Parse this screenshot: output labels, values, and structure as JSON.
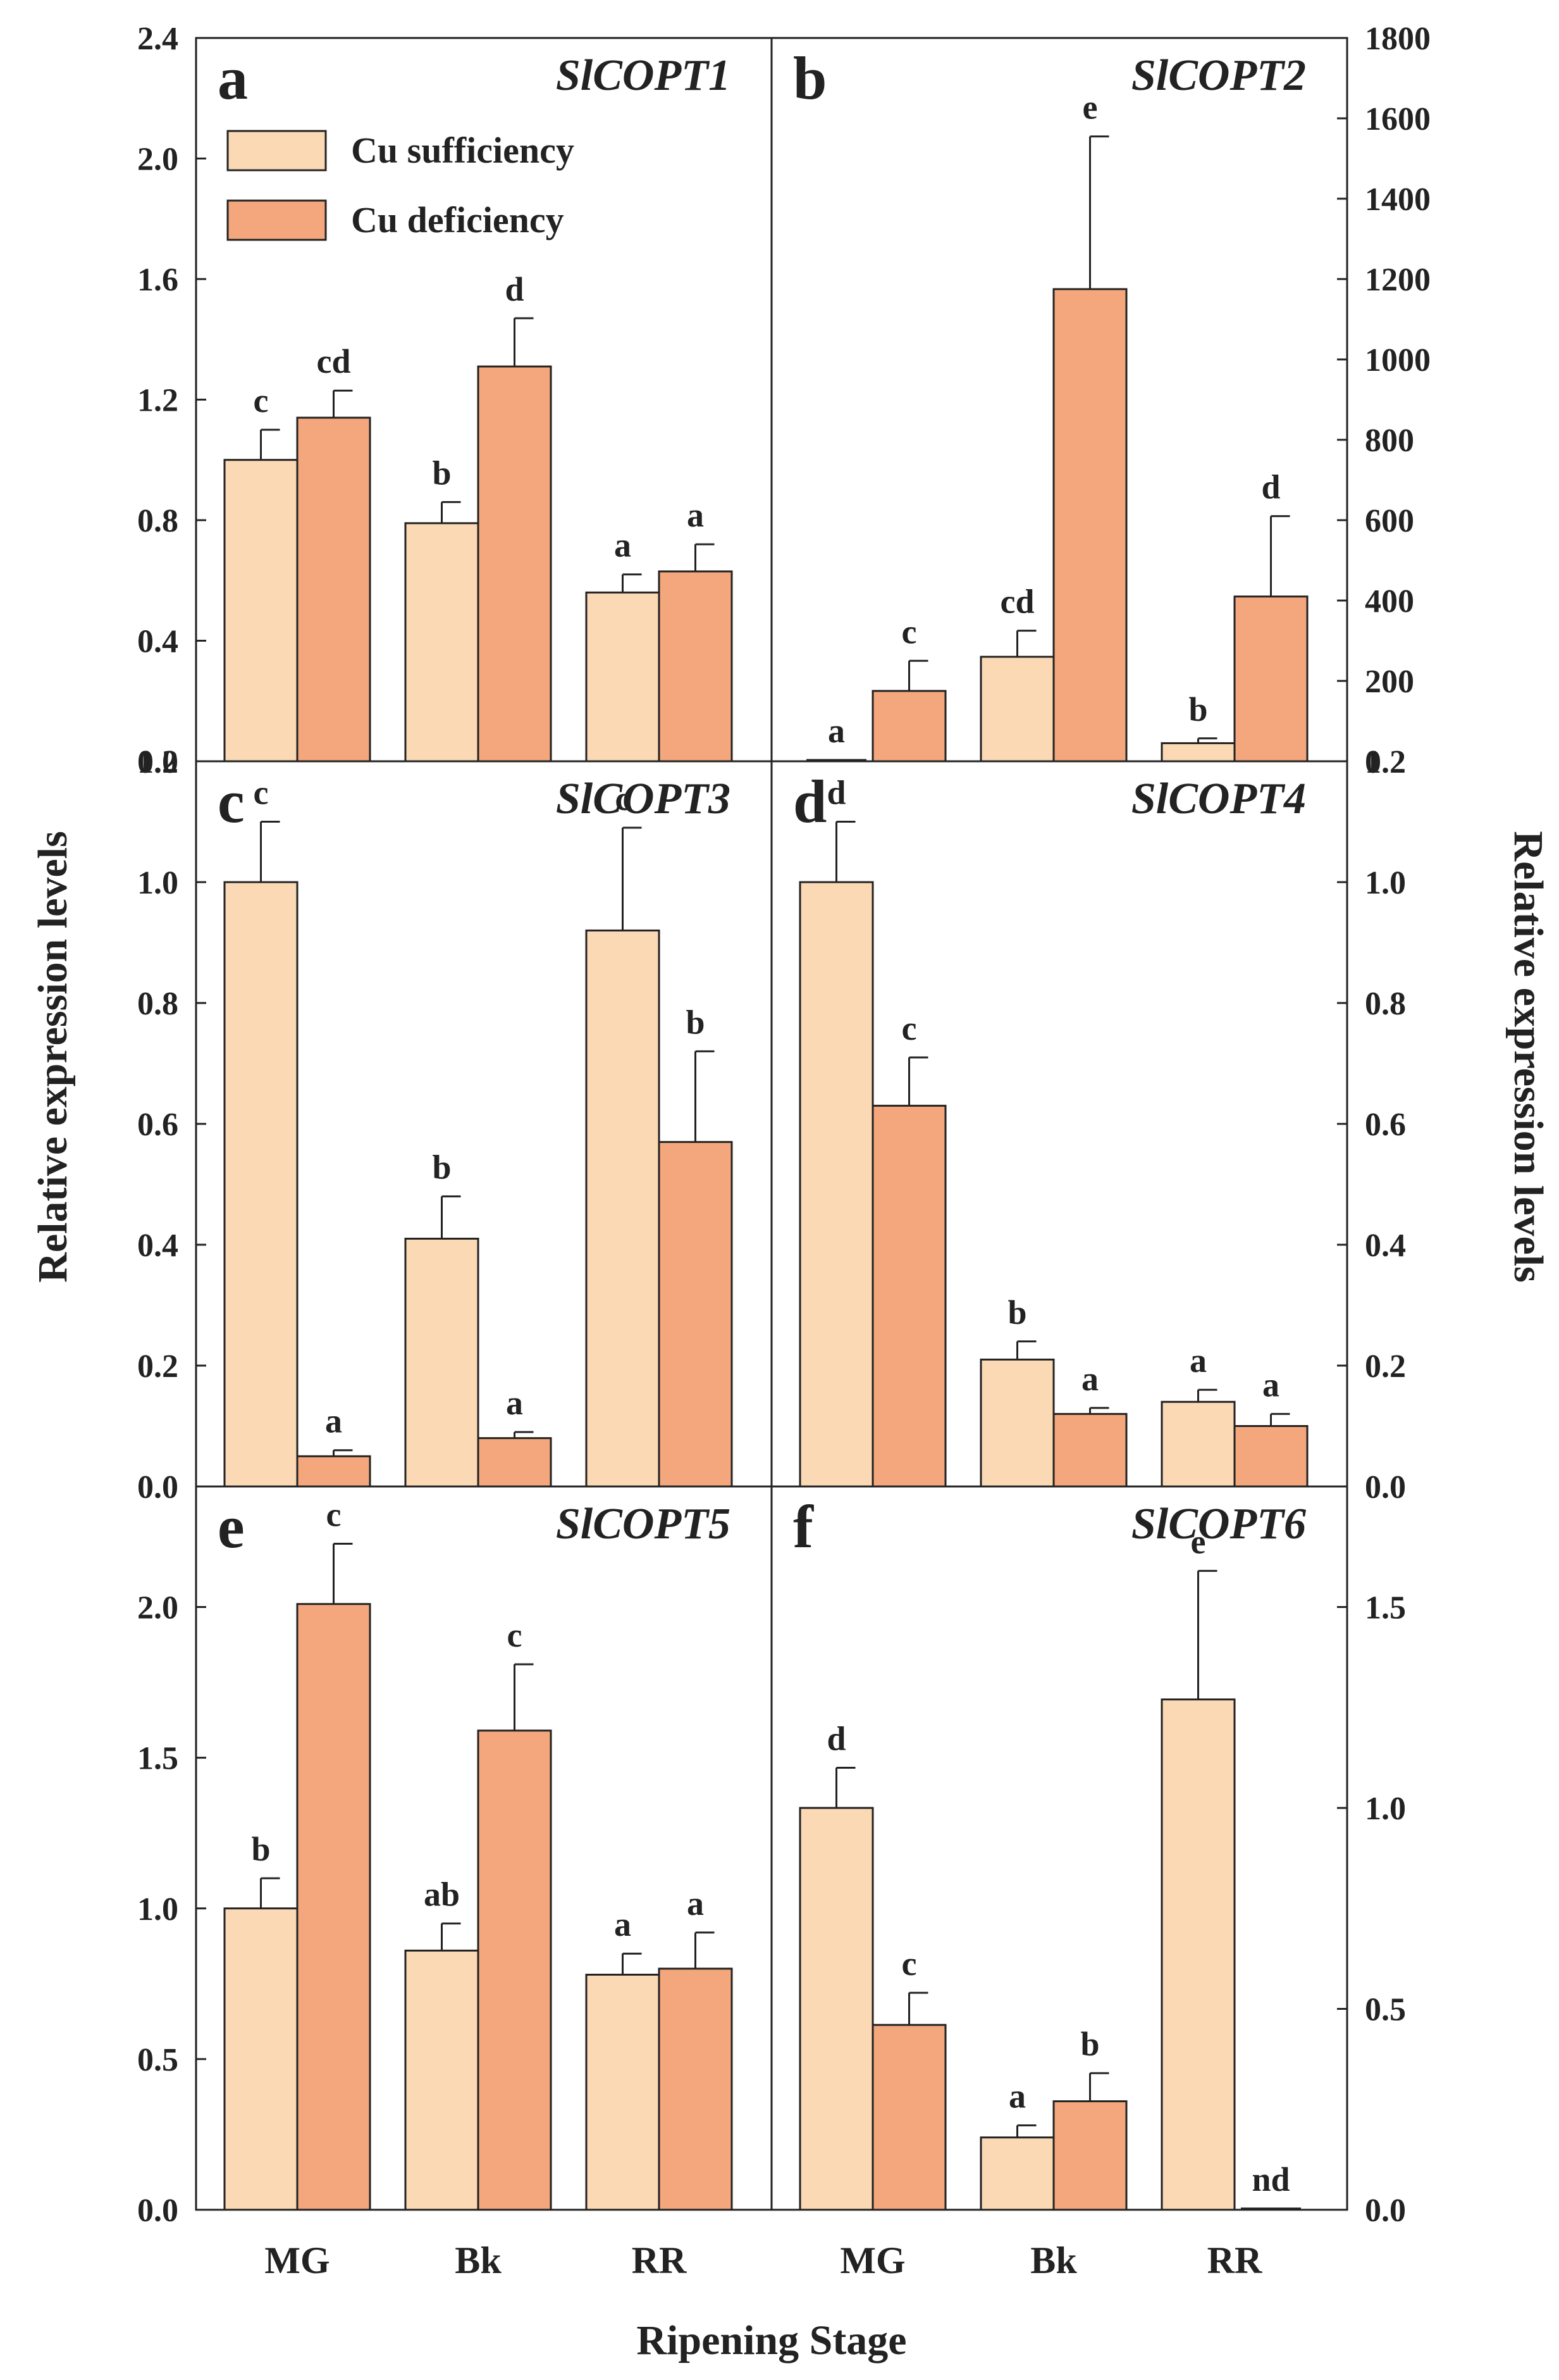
{
  "figure": {
    "ylabel": "Relative expression levels",
    "xlabel": "Ripening Stage",
    "legend": [
      {
        "name": "Cu sufficiency",
        "color": "#FBD9B5"
      },
      {
        "name": "Cu deficiency",
        "color": "#F4A77C"
      }
    ],
    "categories": [
      "MG",
      "Bk",
      "RR"
    ]
  },
  "chart_data": [
    {
      "type": "bar",
      "panel": "a",
      "title": "SlCOPT1",
      "categories": [
        "MG",
        "Bk",
        "RR"
      ],
      "ylim": [
        0,
        2.4
      ],
      "yticks": [
        "0.0",
        "0.4",
        "0.8",
        "1.2",
        "1.6",
        "2.0",
        "2.4"
      ],
      "series": [
        {
          "name": "Cu sufficiency",
          "values": [
            1.0,
            0.79,
            0.56
          ],
          "errors": [
            0.1,
            0.07,
            0.06
          ],
          "labels": [
            "c",
            "b",
            "a"
          ]
        },
        {
          "name": "Cu deficiency",
          "values": [
            1.14,
            1.31,
            0.63
          ],
          "errors": [
            0.09,
            0.16,
            0.09
          ],
          "labels": [
            "cd",
            "d",
            "a"
          ]
        }
      ]
    },
    {
      "type": "bar",
      "panel": "b",
      "title": "SlCOPT2",
      "categories": [
        "MG",
        "Bk",
        "RR"
      ],
      "ylim": [
        0,
        1800
      ],
      "yticks": [
        "0",
        "200",
        "400",
        "600",
        "800",
        "1000",
        "1200",
        "1400",
        "1600",
        "1800"
      ],
      "series": [
        {
          "name": "Cu sufficiency",
          "values": [
            0,
            260,
            45
          ],
          "errors": [
            0,
            65,
            12
          ],
          "labels": [
            "a",
            "cd",
            "b"
          ]
        },
        {
          "name": "Cu deficiency",
          "values": [
            175,
            1175,
            410
          ],
          "errors": [
            75,
            380,
            200
          ],
          "labels": [
            "c",
            "e",
            "d"
          ]
        }
      ]
    },
    {
      "type": "bar",
      "panel": "c",
      "title": "SlCOPT3",
      "categories": [
        "MG",
        "Bk",
        "RR"
      ],
      "ylim": [
        0,
        1.2
      ],
      "yticks": [
        "0.0",
        "0.2",
        "0.4",
        "0.6",
        "0.8",
        "1.0",
        "1.2"
      ],
      "series": [
        {
          "name": "Cu sufficiency",
          "values": [
            1.0,
            0.41,
            0.92
          ],
          "errors": [
            0.1,
            0.07,
            0.17
          ],
          "labels": [
            "c",
            "b",
            "c"
          ]
        },
        {
          "name": "Cu deficiency",
          "values": [
            0.05,
            0.08,
            0.57
          ],
          "errors": [
            0.01,
            0.01,
            0.15
          ],
          "labels": [
            "a",
            "a",
            "b"
          ]
        }
      ]
    },
    {
      "type": "bar",
      "panel": "d",
      "title": "SlCOPT4",
      "categories": [
        "MG",
        "Bk",
        "RR"
      ],
      "ylim": [
        0,
        1.2
      ],
      "yticks": [
        "0.0",
        "0.2",
        "0.4",
        "0.6",
        "0.8",
        "1.0",
        "1.2"
      ],
      "series": [
        {
          "name": "Cu sufficiency",
          "values": [
            1.0,
            0.21,
            0.14
          ],
          "errors": [
            0.1,
            0.03,
            0.02
          ],
          "labels": [
            "d",
            "b",
            "a"
          ]
        },
        {
          "name": "Cu deficiency",
          "values": [
            0.63,
            0.12,
            0.1
          ],
          "errors": [
            0.08,
            0.01,
            0.02
          ],
          "labels": [
            "c",
            "a",
            "a"
          ]
        }
      ]
    },
    {
      "type": "bar",
      "panel": "e",
      "title": "SlCOPT5",
      "categories": [
        "MG",
        "Bk",
        "RR"
      ],
      "ylim": [
        0,
        2.4
      ],
      "yticks": [
        "0.0",
        "0.5",
        "1.0",
        "1.5",
        "2.0"
      ],
      "series": [
        {
          "name": "Cu sufficiency",
          "values": [
            1.0,
            0.86,
            0.78
          ],
          "errors": [
            0.1,
            0.09,
            0.07
          ],
          "labels": [
            "b",
            "ab",
            "a"
          ]
        },
        {
          "name": "Cu deficiency",
          "values": [
            2.01,
            1.59,
            0.8
          ],
          "errors": [
            0.2,
            0.22,
            0.12
          ],
          "labels": [
            "c",
            "c",
            "a"
          ]
        }
      ]
    },
    {
      "type": "bar",
      "panel": "f",
      "title": "SlCOPT6",
      "categories": [
        "MG",
        "Bk",
        "RR"
      ],
      "ylim": [
        0,
        1.8
      ],
      "yticks": [
        "0.0",
        "0.5",
        "1.0",
        "1.5"
      ],
      "series": [
        {
          "name": "Cu sufficiency",
          "values": [
            1.0,
            0.18,
            1.27
          ],
          "errors": [
            0.1,
            0.03,
            0.32
          ],
          "labels": [
            "d",
            "a",
            "e"
          ]
        },
        {
          "name": "Cu deficiency",
          "values": [
            0.46,
            0.27,
            0.0
          ],
          "errors": [
            0.08,
            0.07,
            0.0
          ],
          "labels": [
            "c",
            "b",
            "nd"
          ]
        }
      ]
    }
  ]
}
